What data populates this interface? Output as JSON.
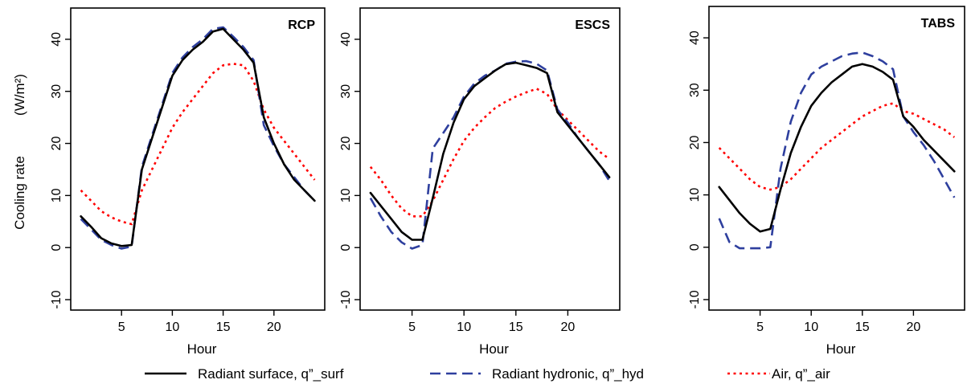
{
  "figure": {
    "ylabel": "Cooling rate",
    "yunit": "(W/m²)",
    "xlabel": "Hour"
  },
  "legend": [
    {
      "name": "Radiant surface, q”_surf",
      "color": "#000000",
      "dash": "solid"
    },
    {
      "name": "Radiant hydronic, q”_hyd",
      "color": "#2e3f9e",
      "dash": "long-dash"
    },
    {
      "name": "Air, q”_air",
      "color": "#ff0000",
      "dash": "dotted"
    }
  ],
  "chart_data": [
    {
      "type": "line",
      "title": "RCP",
      "xlabel": "Hour",
      "ylabel": "Cooling rate (W/m²)",
      "xlim": [
        0,
        25
      ],
      "ylim": [
        -12,
        46
      ],
      "xticks": [
        5,
        10,
        15,
        20
      ],
      "yticks": [
        -10,
        0,
        10,
        20,
        30,
        40
      ],
      "x": [
        1,
        2,
        3,
        4,
        5,
        6,
        7,
        8,
        9,
        10,
        11,
        12,
        13,
        14,
        15,
        16,
        17,
        18,
        19,
        20,
        21,
        22,
        23,
        24
      ],
      "series": [
        {
          "name": "Radiant surface, q”_surf",
          "values": [
            6,
            4,
            1.8,
            0.8,
            0.3,
            0.5,
            15,
            21,
            27,
            33,
            36,
            38,
            39.5,
            41.5,
            42,
            40,
            38,
            35.5,
            25,
            20,
            16,
            13,
            11,
            9
          ]
        },
        {
          "name": "Radiant hydronic, q”_hyd",
          "values": [
            5.5,
            3.5,
            1.5,
            0.5,
            -0.2,
            0.2,
            15.5,
            21.5,
            27.5,
            33.5,
            36.5,
            38.5,
            40,
            42,
            42.3,
            40.5,
            38.5,
            36,
            23.5,
            19.5,
            16,
            13.5,
            11,
            9
          ]
        },
        {
          "name": "Air, q”_air",
          "values": [
            11,
            9,
            7,
            5.8,
            5,
            4.5,
            11,
            15,
            19,
            23,
            26,
            28.5,
            31,
            33.5,
            35,
            35.3,
            35,
            32,
            26.5,
            23,
            20.5,
            18,
            15.5,
            13
          ]
        }
      ]
    },
    {
      "type": "line",
      "title": "ESCS",
      "xlabel": "Hour",
      "ylabel": "",
      "xlim": [
        0,
        25
      ],
      "ylim": [
        -12,
        46
      ],
      "xticks": [
        5,
        10,
        15,
        20
      ],
      "yticks": [
        -10,
        0,
        10,
        20,
        30,
        40
      ],
      "x": [
        1,
        2,
        3,
        4,
        5,
        6,
        7,
        8,
        9,
        10,
        11,
        12,
        13,
        14,
        15,
        16,
        17,
        18,
        19,
        20,
        21,
        22,
        23,
        24
      ],
      "series": [
        {
          "name": "Radiant surface, q”_surf",
          "values": [
            10.5,
            8,
            5.5,
            3,
            1.5,
            1.5,
            9.5,
            18,
            24,
            28.5,
            31,
            32.5,
            34,
            35.2,
            35.5,
            35,
            34.5,
            33.5,
            26,
            23.5,
            21,
            18.5,
            16,
            13.5
          ]
        },
        {
          "name": "Radiant hydronic, q”_hyd",
          "values": [
            9.5,
            6,
            3,
            1,
            -0.2,
            0.5,
            19,
            22,
            25,
            29,
            31.5,
            33,
            34,
            35.3,
            35.7,
            35.8,
            35.3,
            34,
            26.5,
            24,
            21,
            18.5,
            16,
            12.8
          ]
        },
        {
          "name": "Air, q”_air",
          "values": [
            15.5,
            13,
            10,
            7.5,
            6,
            6,
            9,
            13,
            17,
            20.5,
            23,
            25,
            26.8,
            28,
            29,
            29.8,
            30.5,
            29.5,
            26.5,
            24.5,
            22.5,
            20.5,
            18.5,
            17
          ]
        }
      ]
    },
    {
      "type": "line",
      "title": "TABS",
      "xlabel": "Hour",
      "ylabel": "",
      "xlim": [
        0,
        25
      ],
      "ylim": [
        -12,
        46
      ],
      "xticks": [
        5,
        10,
        15,
        20
      ],
      "yticks": [
        -10,
        0,
        10,
        20,
        30,
        40
      ],
      "x": [
        1,
        2,
        3,
        4,
        5,
        6,
        7,
        8,
        9,
        10,
        11,
        12,
        13,
        14,
        15,
        16,
        17,
        18,
        19,
        20,
        21,
        22,
        23,
        24
      ],
      "series": [
        {
          "name": "Radiant surface, q”_surf",
          "values": [
            11.5,
            9,
            6.5,
            4.5,
            3,
            3.5,
            11,
            18,
            23,
            27,
            29.5,
            31.5,
            33,
            34.5,
            35,
            34.5,
            33.5,
            32,
            25,
            23,
            20.5,
            18.5,
            16.5,
            14.5
          ]
        },
        {
          "name": "Radiant hydronic, q”_hyd",
          "values": [
            5.5,
            1,
            -0.2,
            -0.2,
            -0.2,
            0,
            15,
            24,
            29.5,
            33,
            34.5,
            35.5,
            36.5,
            37,
            37.2,
            36.5,
            35.5,
            34,
            25,
            22,
            19.5,
            16.5,
            13,
            9.5
          ]
        },
        {
          "name": "Air, q”_air",
          "values": [
            19,
            17,
            15,
            13,
            11.5,
            11,
            11.5,
            13,
            15,
            17,
            19,
            20.5,
            22,
            23.5,
            25,
            26,
            27,
            27.5,
            26,
            25.5,
            24.5,
            23.5,
            22.5,
            21
          ]
        }
      ]
    }
  ]
}
